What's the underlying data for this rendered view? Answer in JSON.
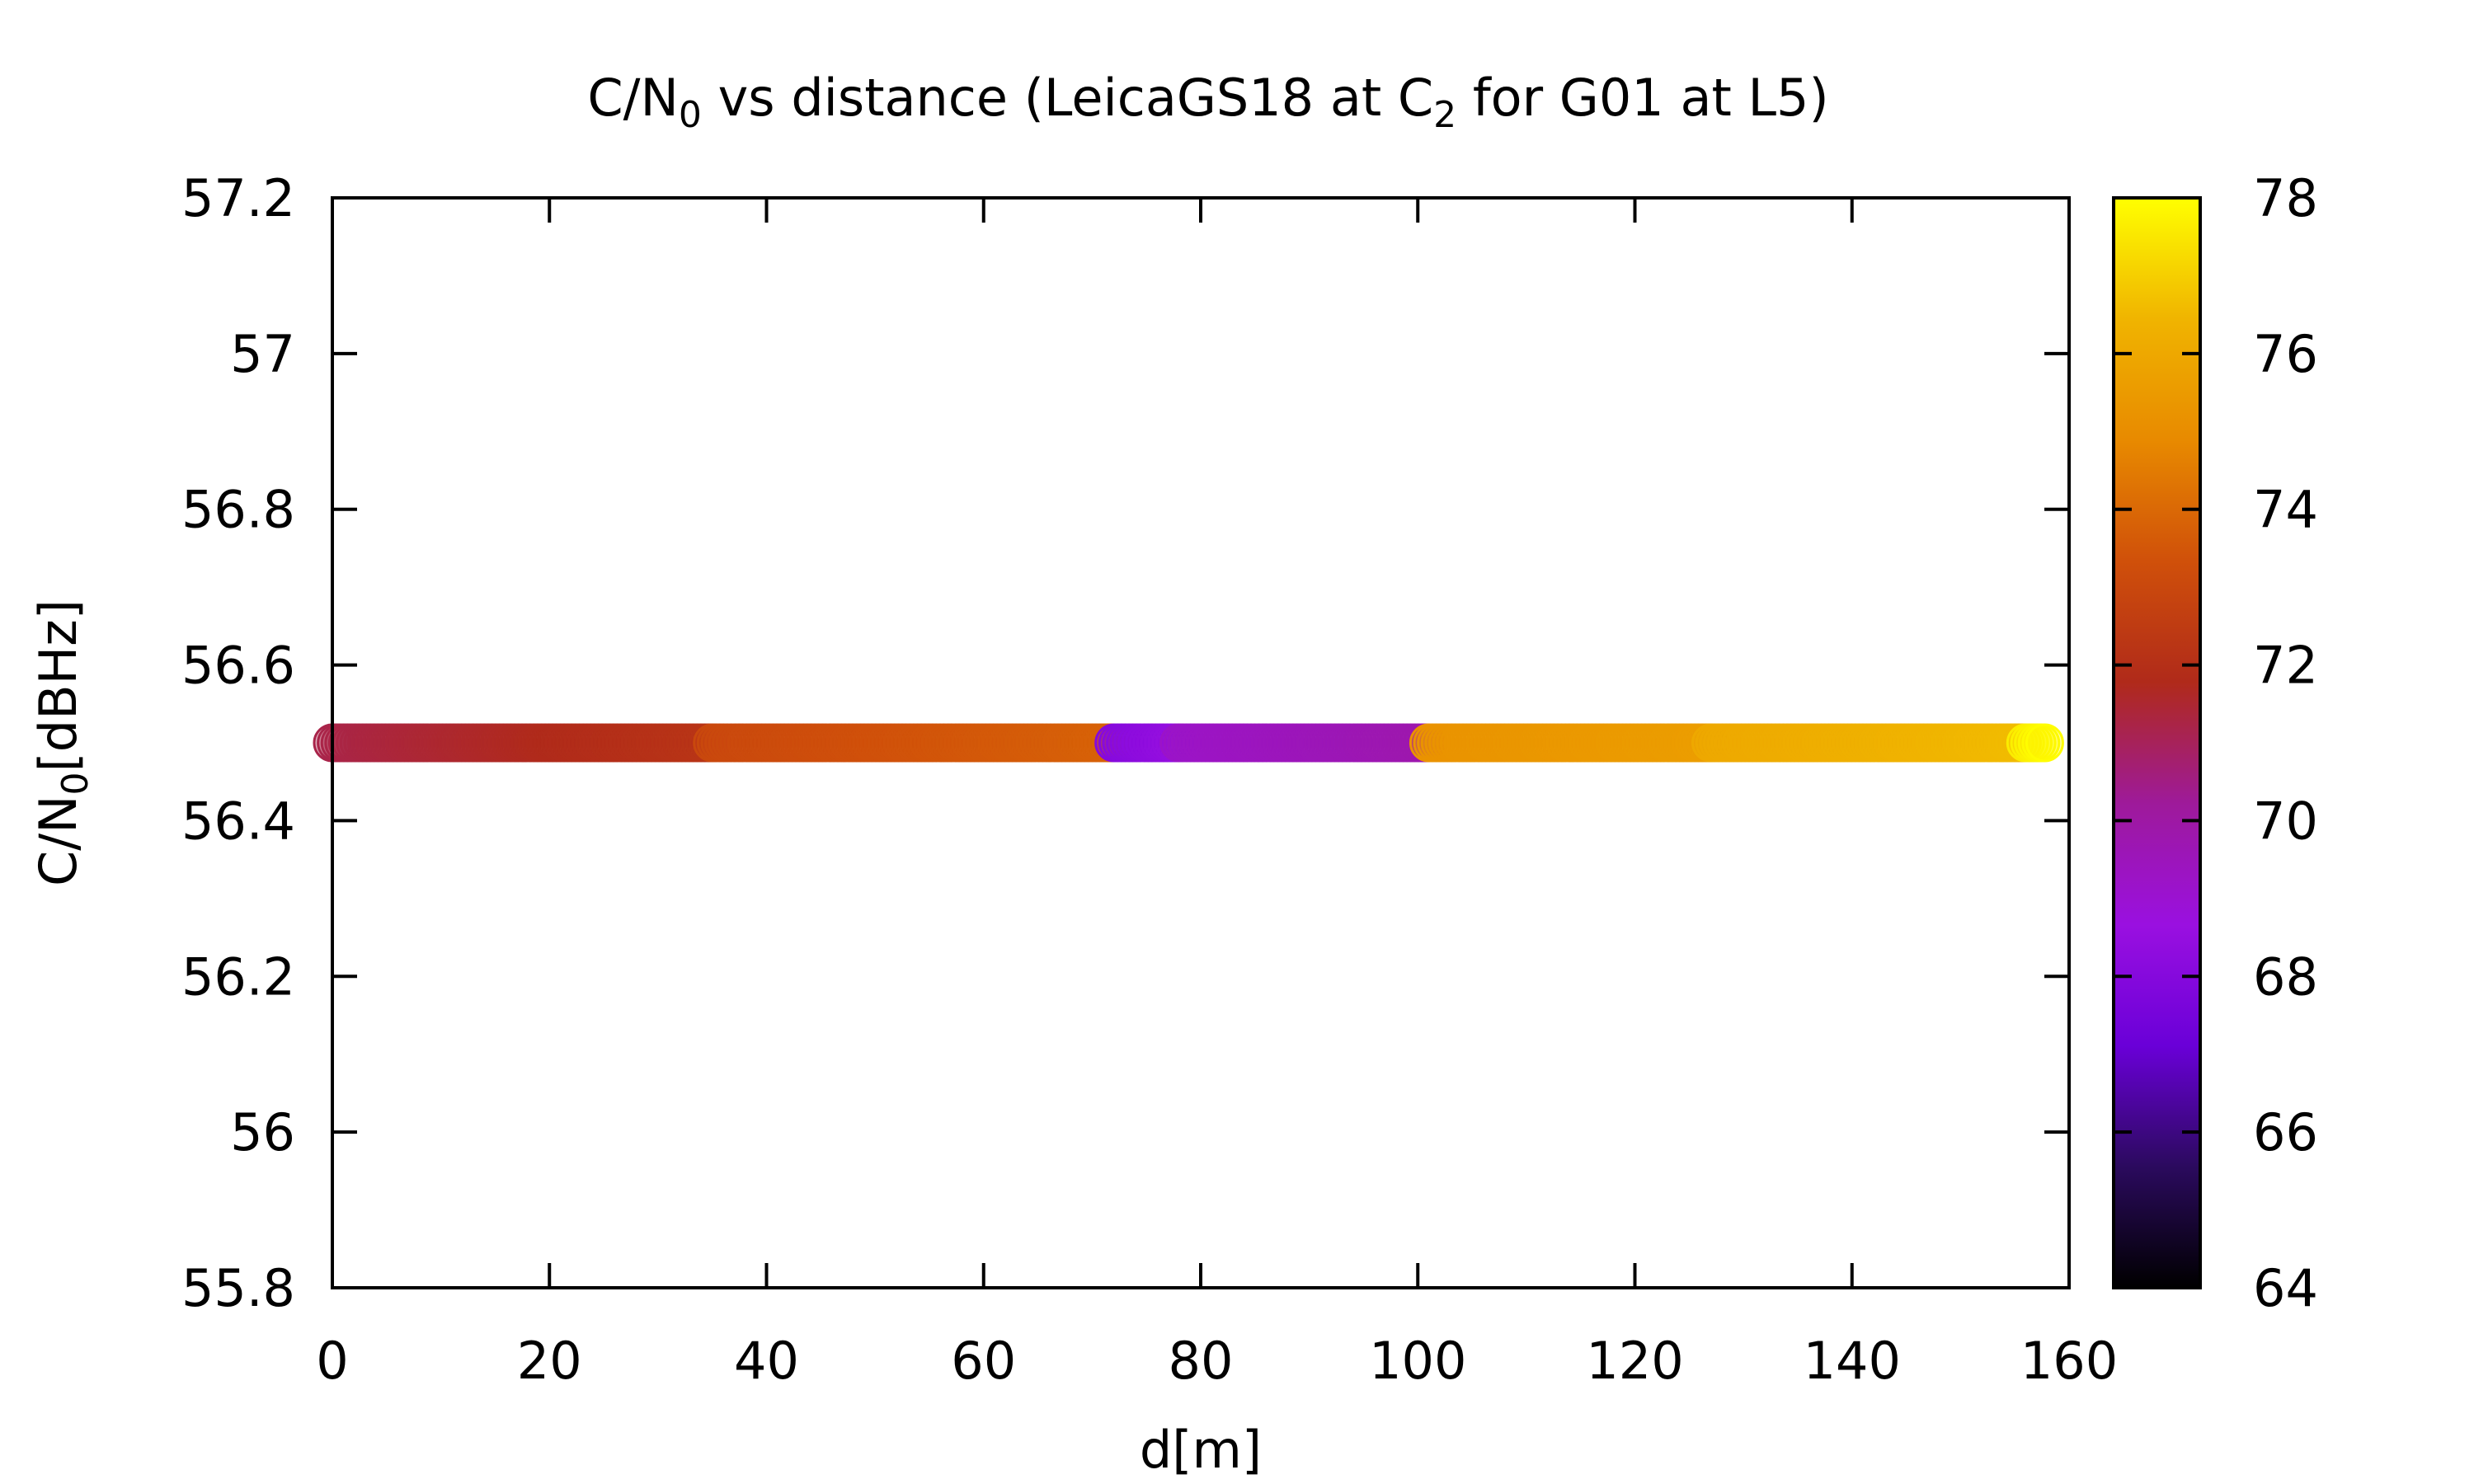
{
  "chart_data": {
    "type": "scatter",
    "title": {
      "part1": "C/N",
      "sub1": "0",
      "part2": " vs distance (LeicaGS18 at C",
      "sub2": "2",
      "part3": " for G01 at L5)"
    },
    "xlabel": "d[m]",
    "ylabel": {
      "main": "C/N",
      "sub": "0",
      "rest": "[dBHz]"
    },
    "xlim": [
      0,
      160
    ],
    "ylim": [
      55.8,
      57.2
    ],
    "x_ticks": [
      {
        "v": 0,
        "label": "0"
      },
      {
        "v": 20,
        "label": "20"
      },
      {
        "v": 40,
        "label": "40"
      },
      {
        "v": 60,
        "label": "60"
      },
      {
        "v": 80,
        "label": "80"
      },
      {
        "v": 100,
        "label": "100"
      },
      {
        "v": 120,
        "label": "120"
      },
      {
        "v": 140,
        "label": "140"
      },
      {
        "v": 160,
        "label": "160"
      }
    ],
    "y_ticks": [
      {
        "v": 55.8,
        "label": "55.8"
      },
      {
        "v": 56,
        "label": "56"
      },
      {
        "v": 56.2,
        "label": "56.2"
      },
      {
        "v": 56.4,
        "label": "56.4"
      },
      {
        "v": 56.6,
        "label": "56.6"
      },
      {
        "v": 56.8,
        "label": "56.8"
      },
      {
        "v": 57,
        "label": "57"
      },
      {
        "v": 57.2,
        "label": "57.2"
      }
    ],
    "colorbar": {
      "range": [
        64,
        78
      ],
      "ticks": [
        {
          "v": 64,
          "label": "64"
        },
        {
          "v": 66,
          "label": "66"
        },
        {
          "v": 68,
          "label": "68"
        },
        {
          "v": 70,
          "label": "70"
        },
        {
          "v": 72,
          "label": "72"
        },
        {
          "v": 74,
          "label": "74"
        },
        {
          "v": 76,
          "label": "76"
        },
        {
          "v": 78,
          "label": "78"
        }
      ],
      "palette": [
        "#000000",
        "#2b0a5e",
        "#6a00d8",
        "#9a10e0",
        "#9e1a9a",
        "#b02a1a",
        "#d0500a",
        "#e88a00",
        "#f0b400",
        "#ffff00"
      ]
    },
    "grid": false,
    "legend": "none",
    "series": [
      {
        "segments": [
          {
            "x_from": 0,
            "x_to": 35,
            "y": 56.5,
            "c_from": 71.2,
            "c_to": 72.2
          },
          {
            "x_from": 35,
            "x_to": 72,
            "y": 56.5,
            "c_from": 73.0,
            "c_to": 73.8
          },
          {
            "x_from": 72,
            "x_to": 78,
            "y": 56.5,
            "c_from": 68.0,
            "c_to": 68.5
          },
          {
            "x_from": 78,
            "x_to": 101,
            "y": 56.5,
            "c_from": 69.2,
            "c_to": 69.8
          },
          {
            "x_from": 101,
            "x_to": 127,
            "y": 56.5,
            "c_from": 75.2,
            "c_to": 75.6
          },
          {
            "x_from": 127,
            "x_to": 156,
            "y": 56.5,
            "c_from": 76.0,
            "c_to": 76.6
          },
          {
            "x_from": 156,
            "x_to": 158,
            "y": 56.5,
            "c_from": 77.6,
            "c_to": 78.0
          }
        ]
      }
    ]
  }
}
